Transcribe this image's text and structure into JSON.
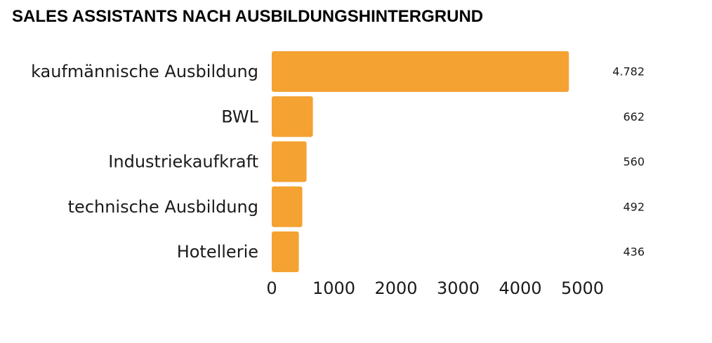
{
  "chart_data": {
    "type": "bar",
    "orientation": "horizontal",
    "title": "SALES ASSISTANTS NACH AUSBILDUNGSHINTERGRUND",
    "categories": [
      "kaufmännische Ausbildung",
      "BWL",
      "Industriekaufkraft",
      "technische Ausbildung",
      "Hotellerie"
    ],
    "values": [
      4782,
      662,
      560,
      492,
      436
    ],
    "value_labels": [
      "4.782",
      "662",
      "560",
      "492",
      "436"
    ],
    "xticks": [
      0,
      1000,
      2000,
      3000,
      4000,
      5000
    ],
    "xtick_labels": [
      "0",
      "1000",
      "2000",
      "3000",
      "4000",
      "5000"
    ],
    "xlim": [
      0,
      5000
    ],
    "xlabel": "",
    "ylabel": "",
    "grid": false,
    "legend": "none",
    "bar_color": "#F4A232"
  }
}
